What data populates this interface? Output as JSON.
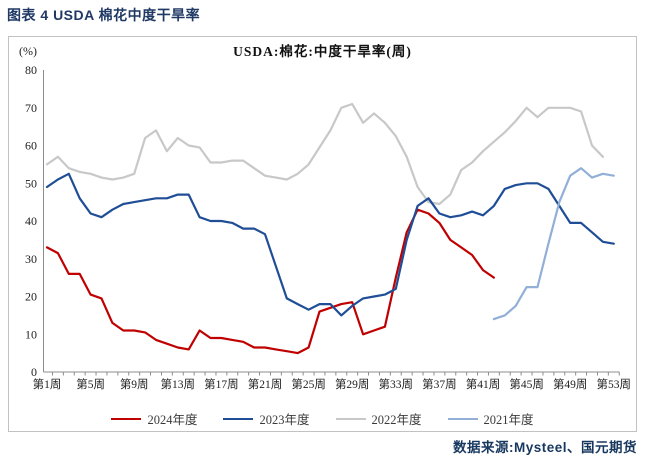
{
  "header": {
    "title": "图表 4 USDA 棉花中度干旱率"
  },
  "footer": {
    "source": "数据来源:Mysteel、国元期货"
  },
  "chart_data": {
    "type": "line",
    "title": "USDA:棉花:中度干旱率(周)",
    "unit_label": "(%)",
    "xlabel": "周",
    "ylabel": "%",
    "ylim": [
      0,
      80
    ],
    "y_ticks": [
      0,
      10,
      20,
      30,
      40,
      50,
      60,
      70,
      80
    ],
    "weeks_total": 53,
    "x_tick_weeks": [
      1,
      5,
      9,
      13,
      17,
      21,
      25,
      29,
      33,
      37,
      41,
      45,
      49,
      53
    ],
    "x_tick_labels": [
      "第1周",
      "第5周",
      "第9周",
      "第13周",
      "第17周",
      "第21周",
      "第25周",
      "第29周",
      "第33周",
      "第37周",
      "第41周",
      "第45周",
      "第49周",
      "第53周"
    ],
    "grid": false,
    "legend_position": "bottom",
    "axis_color": "#8c8c8c",
    "series": [
      {
        "name": "2024年度",
        "color": "#C00000",
        "start_week": 1,
        "values": [
          33,
          31.5,
          26,
          26,
          20.5,
          19.5,
          13,
          11,
          11,
          10.5,
          8.5,
          7.5,
          6.5,
          6,
          11,
          9,
          9,
          8.5,
          8,
          6.5,
          6.5,
          6,
          5.5,
          5,
          6.5,
          16,
          17,
          18,
          18.5,
          10,
          11,
          12,
          25,
          37,
          43,
          42,
          39.5,
          35,
          33,
          31,
          27,
          25
        ]
      },
      {
        "name": "2023年度",
        "color": "#1F4E96",
        "start_week": 1,
        "values": [
          49,
          51,
          52.5,
          46,
          42,
          41,
          43,
          44.5,
          45,
          45.5,
          46,
          46,
          47,
          47,
          41,
          40,
          40,
          39.5,
          38,
          38,
          36.5,
          28,
          19.5,
          18,
          16.5,
          18,
          18,
          15,
          17.5,
          19.5,
          20,
          20.5,
          22,
          35,
          44,
          46,
          42,
          41,
          41.5,
          42.5,
          41.5,
          44,
          48.5,
          49.5,
          50,
          50,
          48.5,
          44,
          39.5,
          39.5,
          37,
          34.5,
          34
        ]
      },
      {
        "name": "2022年度",
        "color": "#C8C8C8",
        "start_week": 1,
        "values": [
          55,
          57,
          54,
          53,
          52.5,
          51.5,
          51,
          51.5,
          52.5,
          62,
          64,
          58.5,
          62,
          60,
          59.5,
          55.5,
          55.5,
          56,
          56,
          54,
          52,
          51.5,
          51,
          52.5,
          55,
          59.5,
          64,
          70,
          71,
          66,
          68.5,
          66,
          62.5,
          57,
          49,
          45,
          44.5,
          47,
          53.5,
          55.5,
          58.5,
          61,
          63.5,
          66.5,
          70,
          67.5,
          70,
          70,
          70,
          69,
          60,
          57
        ]
      },
      {
        "name": "2021年度",
        "color": "#92AFD7",
        "start_week": 42,
        "values": [
          14,
          15,
          17.5,
          22.5,
          22.5,
          34,
          45,
          52,
          54,
          51.5,
          52.5,
          52
        ]
      }
    ]
  }
}
